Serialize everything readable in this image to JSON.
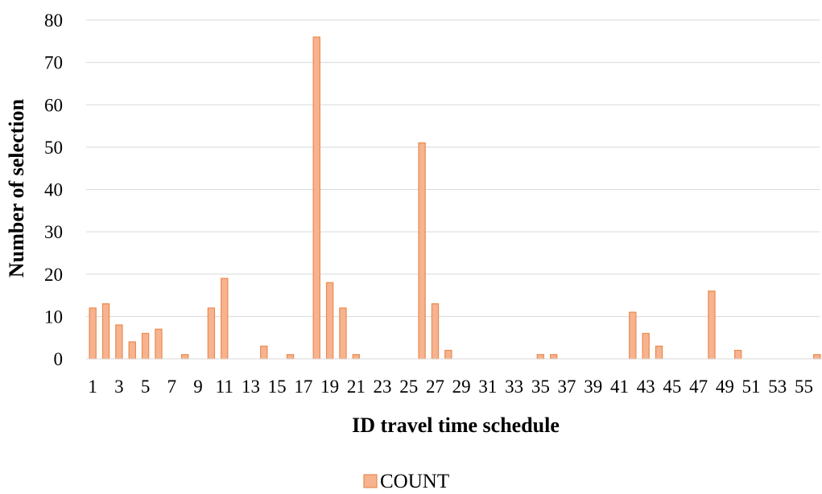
{
  "chart_data": {
    "type": "bar",
    "xlabel": "ID travel time schedule",
    "ylabel": "Number of selection",
    "ylim": [
      0,
      80
    ],
    "yticks": [
      0,
      10,
      20,
      30,
      40,
      50,
      60,
      70,
      80
    ],
    "grid": true,
    "legend_position": "bottom",
    "categories": [
      1,
      2,
      3,
      4,
      5,
      6,
      7,
      8,
      9,
      10,
      11,
      12,
      13,
      14,
      15,
      16,
      17,
      18,
      19,
      20,
      21,
      22,
      23,
      24,
      25,
      26,
      27,
      28,
      29,
      30,
      31,
      32,
      33,
      34,
      35,
      36,
      37,
      38,
      39,
      40,
      41,
      42,
      43,
      44,
      45,
      46,
      47,
      48,
      49,
      50,
      51,
      52,
      53,
      54,
      55,
      56
    ],
    "xtick_labels": [
      "1",
      "3",
      "5",
      "7",
      "9",
      "11",
      "13",
      "15",
      "17",
      "19",
      "21",
      "23",
      "25",
      "27",
      "29",
      "31",
      "33",
      "35",
      "37",
      "39",
      "41",
      "43",
      "45",
      "47",
      "49",
      "51",
      "53",
      "55"
    ],
    "series": [
      {
        "name": "COUNT",
        "color": "#f7b38f",
        "edge_color": "#ea8a4e",
        "values": [
          12,
          13,
          8,
          4,
          6,
          7,
          0,
          1,
          0,
          12,
          19,
          0,
          0,
          3,
          0,
          1,
          0,
          76,
          18,
          12,
          1,
          0,
          0,
          0,
          0,
          51,
          13,
          2,
          0,
          0,
          0,
          0,
          0,
          0,
          1,
          1,
          0,
          0,
          0,
          0,
          0,
          11,
          6,
          3,
          0,
          0,
          0,
          16,
          0,
          2,
          0,
          0,
          0,
          0,
          0,
          1
        ]
      }
    ]
  }
}
